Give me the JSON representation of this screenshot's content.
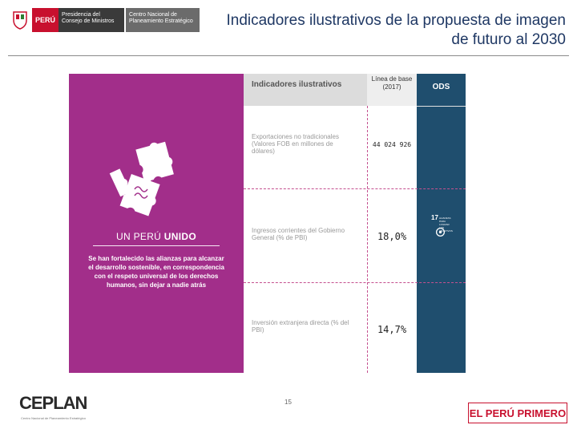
{
  "header": {
    "logo_peru": "PERÚ",
    "logo_presidencia": "Presidencia del Consejo de Ministros",
    "logo_ceplan": "Centro Nacional de Planeamiento Estratégico",
    "title": "Indicadores ilustrativos de la propuesta de imagen de futuro al 2030"
  },
  "panel": {
    "heading_light": "UN PERÚ ",
    "heading_bold": "UNIDO",
    "description": "Se han fortalecido las alianzas para alcanzar el desarrollo sostenible, en correspondencia con el respeto universal de los derechos humanos, sin dejar a nadie atrás"
  },
  "table": {
    "col_indicators": "Indicadores ilustrativos",
    "col_baseline": "Línea de base (2017)",
    "col_ods": "ODS",
    "rows": [
      {
        "label": "Exportaciones no tradicionales (Valores FOB en millones de dólares)",
        "value": "44 024 926"
      },
      {
        "label": "Ingresos corrientes del Gobierno General (% de PBI)",
        "value": "18,0%"
      },
      {
        "label": "Inversión extranjera directa (% del PBI)",
        "value": "14,7%"
      }
    ],
    "ods_badge_number": "17",
    "ods_badge_text": "ALIANZAS PARA LOGRAR LOS OBJETIVOS"
  },
  "footer": {
    "page_number": "15",
    "ceplan_logo": "CEPLAN",
    "ceplan_sub": "Centro Nacional de Planeamiento Estratégico",
    "peru_primero": "EL PERÚ PRIMERO"
  },
  "colors": {
    "purple": "#a22e8a",
    "ods_blue": "#1f4e6e",
    "title_blue": "#1f3864",
    "brand_red": "#c8102e"
  }
}
